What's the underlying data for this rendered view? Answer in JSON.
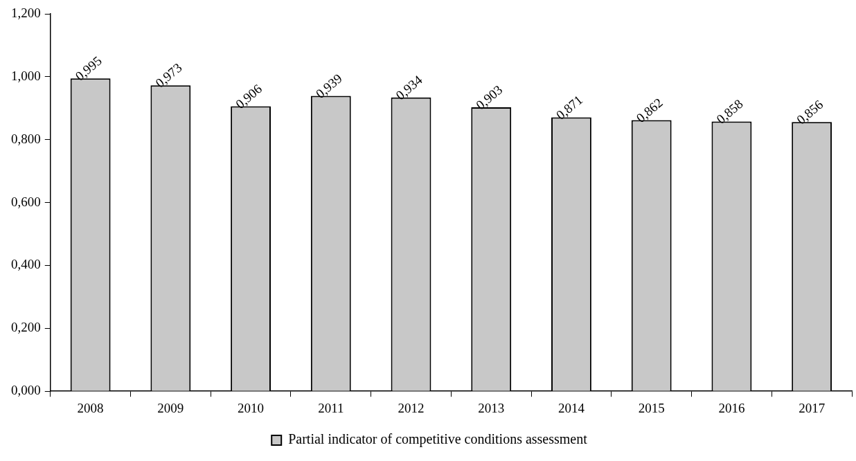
{
  "chart_data": {
    "type": "bar",
    "categories": [
      "2008",
      "2009",
      "2010",
      "2011",
      "2012",
      "2013",
      "2014",
      "2015",
      "2016",
      "2017"
    ],
    "series": [
      {
        "name": "Partial indicator of competitive conditions assessment",
        "color": "#c8c8c8",
        "values": [
          0.995,
          0.973,
          0.906,
          0.939,
          0.934,
          0.903,
          0.871,
          0.862,
          0.858,
          0.856
        ],
        "value_labels": [
          "0,995",
          "0,973",
          "0,906",
          "0,939",
          "0,934",
          "0,903",
          "0,871",
          "0,862",
          "0,858",
          "0,856"
        ]
      }
    ],
    "ylim": [
      0,
      1.2
    ],
    "yticks": [
      {
        "value": 0,
        "label": "0,000"
      },
      {
        "value": 0.2,
        "label": "0,200"
      },
      {
        "value": 0.4,
        "label": "0,400"
      },
      {
        "value": 0.6,
        "label": "0,600"
      },
      {
        "value": 0.8,
        "label": "0,800"
      },
      {
        "value": 1,
        "label": "1,000"
      },
      {
        "value": 1.2,
        "label": "1,200"
      }
    ],
    "grid": false,
    "legend": "bottom"
  }
}
